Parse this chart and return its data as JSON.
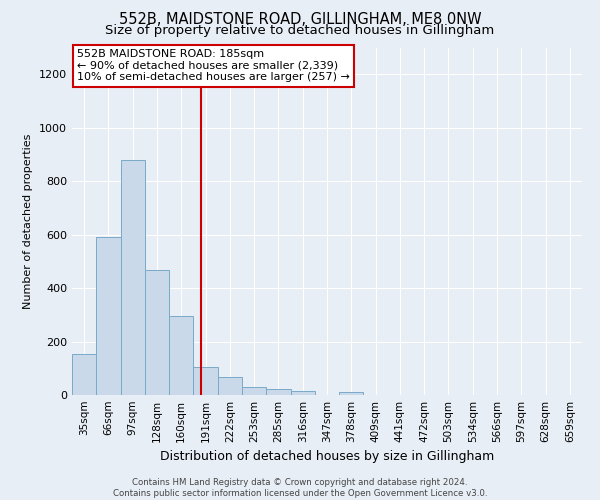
{
  "title": "552B, MAIDSTONE ROAD, GILLINGHAM, ME8 0NW",
  "subtitle": "Size of property relative to detached houses in Gillingham",
  "xlabel": "Distribution of detached houses by size in Gillingham",
  "ylabel": "Number of detached properties",
  "footer_line1": "Contains HM Land Registry data © Crown copyright and database right 2024.",
  "footer_line2": "Contains public sector information licensed under the Open Government Licence v3.0.",
  "categories": [
    "35sqm",
    "66sqm",
    "97sqm",
    "128sqm",
    "160sqm",
    "191sqm",
    "222sqm",
    "253sqm",
    "285sqm",
    "316sqm",
    "347sqm",
    "378sqm",
    "409sqm",
    "441sqm",
    "472sqm",
    "503sqm",
    "534sqm",
    "566sqm",
    "597sqm",
    "628sqm",
    "659sqm"
  ],
  "values": [
    152,
    590,
    880,
    468,
    295,
    105,
    68,
    30,
    22,
    14,
    0,
    12,
    0,
    0,
    0,
    0,
    0,
    0,
    0,
    0,
    0
  ],
  "bar_color": "#c9d9ea",
  "bar_edge_color": "#7aaac8",
  "vline_color": "#cc0000",
  "ylim": [
    0,
    1300
  ],
  "yticks": [
    0,
    200,
    400,
    600,
    800,
    1000,
    1200
  ],
  "annotation_line1": "552B MAIDSTONE ROAD: 185sqm",
  "annotation_line2": "← 90% of detached houses are smaller (2,339)",
  "annotation_line3": "10% of semi-detached houses are larger (257) →",
  "annotation_box_color": "#ffffff",
  "annotation_box_edge": "#cc0000",
  "bg_color": "#e8eef5",
  "plot_bg_color": "#e8eef5",
  "title_fontsize": 10.5,
  "subtitle_fontsize": 9.5,
  "ylabel_fontsize": 8,
  "xlabel_fontsize": 9,
  "tick_fontsize": 8,
  "xtick_fontsize": 7.5
}
